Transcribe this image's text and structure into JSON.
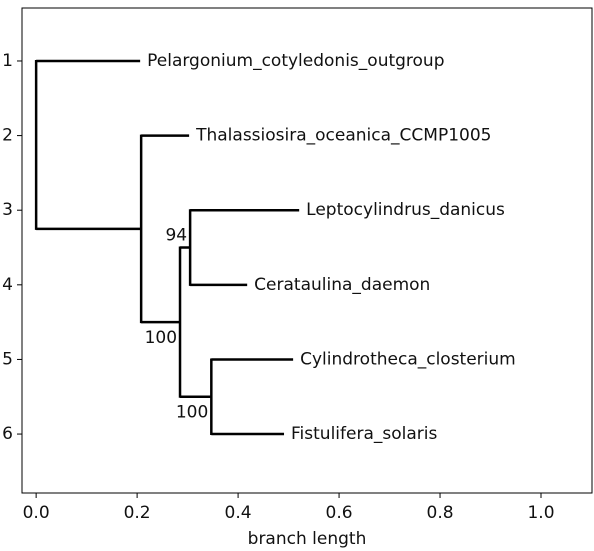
{
  "chart_data": {
    "type": "tree",
    "xlabel": "branch length",
    "xlim": [
      -0.028,
      1.101
    ],
    "ylim": [
      0.29,
      6.79
    ],
    "invert_y": true,
    "xticks": [
      {
        "value": 0,
        "label": "0.0"
      },
      0.2,
      0.4,
      0.6,
      0.8,
      {
        "value": 1,
        "label": "1.0"
      }
    ],
    "yticks": [
      1,
      2,
      3,
      4,
      5,
      6
    ],
    "color": "#000000",
    "tree": {
      "x": 0,
      "clades": [
        {
          "name": "Pelargonium_cotyledonis_outgroup",
          "x": 0.206,
          "y": 1
        },
        {
          "x": 0.208,
          "clades": [
            {
              "name": "Thalassiosira_oceanica_CCMP1005",
              "x": 0.303,
              "y": 2
            },
            {
              "x": 0.285,
              "confidence": 100,
              "clades": [
                {
                  "x": 0.305,
                  "confidence": 94,
                  "clades": [
                    {
                      "name": "Leptocylindrus_danicus",
                      "x": 0.521,
                      "y": 3
                    },
                    {
                      "name": "Cerataulina_daemon",
                      "x": 0.418,
                      "y": 4
                    }
                  ]
                },
                {
                  "x": 0.347,
                  "confidence": 100,
                  "clades": [
                    {
                      "name": "Cylindrotheca_closterium",
                      "x": 0.509,
                      "y": 5
                    },
                    {
                      "name": "Fistulifera_solaris",
                      "x": 0.491,
                      "y": 6
                    }
                  ]
                }
              ]
            }
          ]
        }
      ]
    }
  }
}
